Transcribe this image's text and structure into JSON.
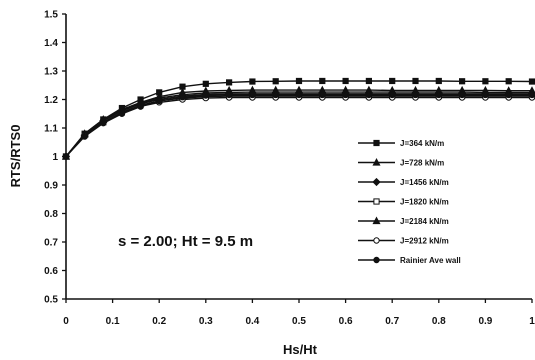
{
  "chart_data": {
    "type": "line",
    "xlabel": "Hs/Ht",
    "ylabel": "RTS/RTS0",
    "xlim": [
      0,
      1
    ],
    "ylim": [
      0.5,
      1.5
    ],
    "x_ticks": [
      "0",
      "0.1",
      "0.2",
      "0.3",
      "0.4",
      "0.5",
      "0.6",
      "0.7",
      "0.8",
      "0.9",
      "1"
    ],
    "y_ticks": [
      "0.5",
      "0.6",
      "0.7",
      "0.8",
      "0.9",
      "1",
      "1.1",
      "1.2",
      "1.3",
      "1.4",
      "1.5"
    ],
    "grid": false,
    "legend_position": "right",
    "annotation": "s = 2.00;   Ht = 9.5 m",
    "series": [
      {
        "name": "J=364 kN/m",
        "marker": "square-filled",
        "x": [
          0,
          0.04,
          0.08,
          0.12,
          0.16,
          0.2,
          0.25,
          0.3,
          0.35,
          0.4,
          0.45,
          0.5,
          0.55,
          0.6,
          0.65,
          0.7,
          0.75,
          0.8,
          0.85,
          0.9,
          0.95,
          1.0
        ],
        "y": [
          1.0,
          1.08,
          1.13,
          1.17,
          1.2,
          1.225,
          1.245,
          1.255,
          1.26,
          1.263,
          1.264,
          1.265,
          1.265,
          1.265,
          1.265,
          1.265,
          1.265,
          1.265,
          1.264,
          1.264,
          1.264,
          1.263
        ]
      },
      {
        "name": "J=728 kN/m",
        "marker": "triangle-filled",
        "x": [
          0,
          0.04,
          0.08,
          0.12,
          0.16,
          0.2,
          0.25,
          0.3,
          0.35,
          0.4,
          0.45,
          0.5,
          0.55,
          0.6,
          0.65,
          0.7,
          0.75,
          0.8,
          0.85,
          0.9,
          0.95,
          1.0
        ],
        "y": [
          1.0,
          1.08,
          1.13,
          1.165,
          1.19,
          1.21,
          1.225,
          1.23,
          1.232,
          1.233,
          1.233,
          1.233,
          1.233,
          1.233,
          1.233,
          1.232,
          1.232,
          1.232,
          1.232,
          1.232,
          1.231,
          1.231
        ]
      },
      {
        "name": "J=1456 kN/m",
        "marker": "diamond-filled",
        "x": [
          0,
          0.04,
          0.08,
          0.12,
          0.16,
          0.2,
          0.25,
          0.3,
          0.35,
          0.4,
          0.45,
          0.5,
          0.55,
          0.6,
          0.65,
          0.7,
          0.75,
          0.8,
          0.85,
          0.9,
          0.95,
          1.0
        ],
        "y": [
          1.0,
          1.075,
          1.125,
          1.16,
          1.185,
          1.2,
          1.212,
          1.218,
          1.22,
          1.22,
          1.22,
          1.22,
          1.22,
          1.22,
          1.22,
          1.22,
          1.22,
          1.22,
          1.22,
          1.22,
          1.22,
          1.22
        ]
      },
      {
        "name": "J=1820 kN/m",
        "marker": "square-open",
        "x": [
          0,
          0.04,
          0.08,
          0.12,
          0.16,
          0.2,
          0.25,
          0.3,
          0.35,
          0.4,
          0.45,
          0.5,
          0.55,
          0.6,
          0.65,
          0.7,
          0.75,
          0.8,
          0.85,
          0.9,
          0.95,
          1.0
        ],
        "y": [
          1.0,
          1.075,
          1.12,
          1.155,
          1.18,
          1.195,
          1.205,
          1.21,
          1.212,
          1.212,
          1.212,
          1.212,
          1.212,
          1.212,
          1.212,
          1.212,
          1.212,
          1.212,
          1.212,
          1.212,
          1.212,
          1.212
        ]
      },
      {
        "name": "J=2184 kN/m",
        "marker": "triangle-filled",
        "x": [
          0,
          0.04,
          0.08,
          0.12,
          0.16,
          0.2,
          0.25,
          0.3,
          0.35,
          0.4,
          0.45,
          0.5,
          0.55,
          0.6,
          0.65,
          0.7,
          0.75,
          0.8,
          0.85,
          0.9,
          0.95,
          1.0
        ],
        "y": [
          1.0,
          1.078,
          1.128,
          1.163,
          1.188,
          1.205,
          1.217,
          1.223,
          1.225,
          1.226,
          1.226,
          1.226,
          1.226,
          1.226,
          1.226,
          1.226,
          1.226,
          1.226,
          1.226,
          1.225,
          1.225,
          1.225
        ]
      },
      {
        "name": "J=2912 kN/m",
        "marker": "circle-open",
        "x": [
          0,
          0.04,
          0.08,
          0.12,
          0.16,
          0.2,
          0.25,
          0.3,
          0.35,
          0.4,
          0.45,
          0.5,
          0.55,
          0.6,
          0.65,
          0.7,
          0.75,
          0.8,
          0.85,
          0.9,
          0.95,
          1.0
        ],
        "y": [
          1.0,
          1.073,
          1.118,
          1.152,
          1.176,
          1.19,
          1.2,
          1.205,
          1.207,
          1.207,
          1.207,
          1.207,
          1.207,
          1.207,
          1.207,
          1.207,
          1.207,
          1.207,
          1.207,
          1.207,
          1.207,
          1.207
        ]
      },
      {
        "name": "Rainier Ave wall",
        "marker": "circle-filled",
        "x": [
          0,
          0.04,
          0.08,
          0.12,
          0.16,
          0.2,
          0.25,
          0.3,
          0.35,
          0.4,
          0.45,
          0.5,
          0.55,
          0.6,
          0.65,
          0.7,
          0.75,
          0.8,
          0.85,
          0.9,
          0.95,
          1.0
        ],
        "y": [
          1.0,
          1.07,
          1.117,
          1.15,
          1.175,
          1.195,
          1.208,
          1.214,
          1.216,
          1.216,
          1.216,
          1.216,
          1.216,
          1.216,
          1.216,
          1.216,
          1.216,
          1.216,
          1.216,
          1.216,
          1.216,
          1.216
        ]
      }
    ]
  }
}
